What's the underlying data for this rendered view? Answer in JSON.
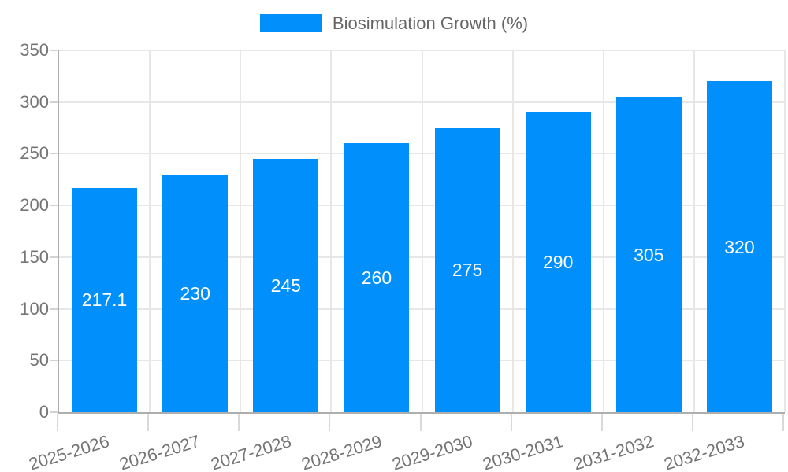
{
  "chart_data": {
    "type": "bar",
    "title": "Biosimulation Growth (%)",
    "legend": {
      "position": "top",
      "entries": [
        "Biosimulation Growth (%)"
      ]
    },
    "categories": [
      "2025-2026",
      "2026-2027",
      "2027-2028",
      "2028-2029",
      "2029-2030",
      "2030-2031",
      "2031-2032",
      "2032-2033"
    ],
    "values": [
      217.1,
      230,
      245,
      260,
      275,
      290,
      305,
      320
    ],
    "data_labels": [
      "217.1",
      "230",
      "245",
      "260",
      "275",
      "290",
      "305",
      "320"
    ],
    "yticks": [
      0,
      50,
      100,
      150,
      200,
      250,
      300,
      350
    ],
    "ylim": [
      0,
      350
    ],
    "xlabel": "",
    "ylabel": "",
    "grid": true,
    "colors": {
      "bar": "#008FFB",
      "data_label": "#ffffff",
      "gridline": "#e7e7e7",
      "axis_line": "#aeaeae",
      "tick_label": "#757575",
      "legend_text": "#666666"
    }
  }
}
